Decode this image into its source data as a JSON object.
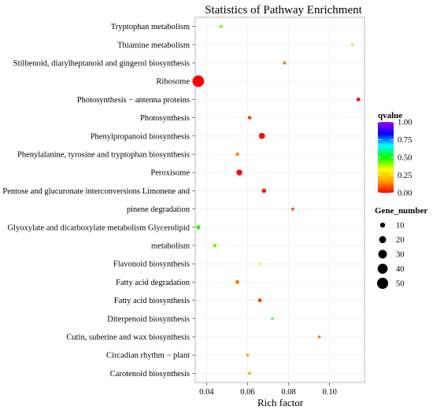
{
  "chart_data": {
    "type": "scatter",
    "title": "Statistics of Pathway Enrichment",
    "xlabel": "Rich factor",
    "ylabel": "",
    "xlim": [
      0.0345,
      0.117
    ],
    "x_ticks": [
      0.04,
      0.06,
      0.08,
      0.1
    ],
    "x_tick_labels": [
      "0.04",
      "0.06",
      "0.08",
      "0.10"
    ],
    "grid": true,
    "categories": [
      "Tryptophan metabolism",
      "Thiamine metabolism",
      "Stilbenoid, diarylheptanoid and gingerol biosynthesis",
      "Ribosome",
      "Photosynthesis − antenna proteins",
      "Photosynthesis",
      "Phenylpropanoid biosynthesis",
      "Phenylalanine, tyrosine and tryptophan biosynthesis",
      "Peroxisome",
      "Pentose and glucuronate interconversions Limonene and",
      "pinene degradation",
      "Glyoxylate and dicarboxylate metabolism Glycerolipid",
      "metabolism",
      "Flavonoid biosynthesis",
      "Fatty acid degradation",
      "Fatty acid biosynthesis",
      "Diterpenoid biosynthesis",
      "Cutin, suberine and wax biosynthesis",
      "Circadian rhythm − plant",
      "Carotenoid biosynthesis"
    ],
    "points": [
      {
        "x": 0.047,
        "gene_number": 4,
        "qvalue": 0.42
      },
      {
        "x": 0.111,
        "gene_number": 2,
        "qvalue": 0.22
      },
      {
        "x": 0.078,
        "gene_number": 4,
        "qvalue": 0.12
      },
      {
        "x": 0.036,
        "gene_number": 54,
        "qvalue": 0.0
      },
      {
        "x": 0.114,
        "gene_number": 6,
        "qvalue": 0.02
      },
      {
        "x": 0.061,
        "gene_number": 5,
        "qvalue": 0.06
      },
      {
        "x": 0.067,
        "gene_number": 15,
        "qvalue": 0.01
      },
      {
        "x": 0.055,
        "gene_number": 5,
        "qvalue": 0.14
      },
      {
        "x": 0.056,
        "gene_number": 14,
        "qvalue": 0.01
      },
      {
        "x": 0.068,
        "gene_number": 8,
        "qvalue": 0.03
      },
      {
        "x": 0.082,
        "gene_number": 4,
        "qvalue": 0.1
      },
      {
        "x": 0.036,
        "gene_number": 7,
        "qvalue": 0.48
      },
      {
        "x": 0.044,
        "gene_number": 6,
        "qvalue": 0.42
      },
      {
        "x": 0.066,
        "gene_number": 3,
        "qvalue": 0.3
      },
      {
        "x": 0.055,
        "gene_number": 6,
        "qvalue": 0.12
      },
      {
        "x": 0.066,
        "gene_number": 6,
        "qvalue": 0.07
      },
      {
        "x": 0.072,
        "gene_number": 2,
        "qvalue": 0.5
      },
      {
        "x": 0.095,
        "gene_number": 3,
        "qvalue": 0.12
      },
      {
        "x": 0.06,
        "gene_number": 4,
        "qvalue": 0.2
      },
      {
        "x": 0.061,
        "gene_number": 4,
        "qvalue": 0.2
      }
    ],
    "color_legend": {
      "title": "qvalue",
      "ticks": [
        1.0,
        0.75,
        0.5,
        0.25,
        0.0
      ],
      "tick_labels": [
        "1.00",
        "0.75",
        "0.50",
        "0.25",
        "0.00"
      ],
      "colors": [
        "#ff0000",
        "#ffa500",
        "#ffff00",
        "#00ff00",
        "#00ffff",
        "#0000ff",
        "#a000ff"
      ]
    },
    "size_legend": {
      "title": "Gene_number",
      "values": [
        10,
        20,
        30,
        40,
        50
      ],
      "labels": [
        "10",
        "20",
        "30",
        "40",
        "50"
      ]
    }
  }
}
